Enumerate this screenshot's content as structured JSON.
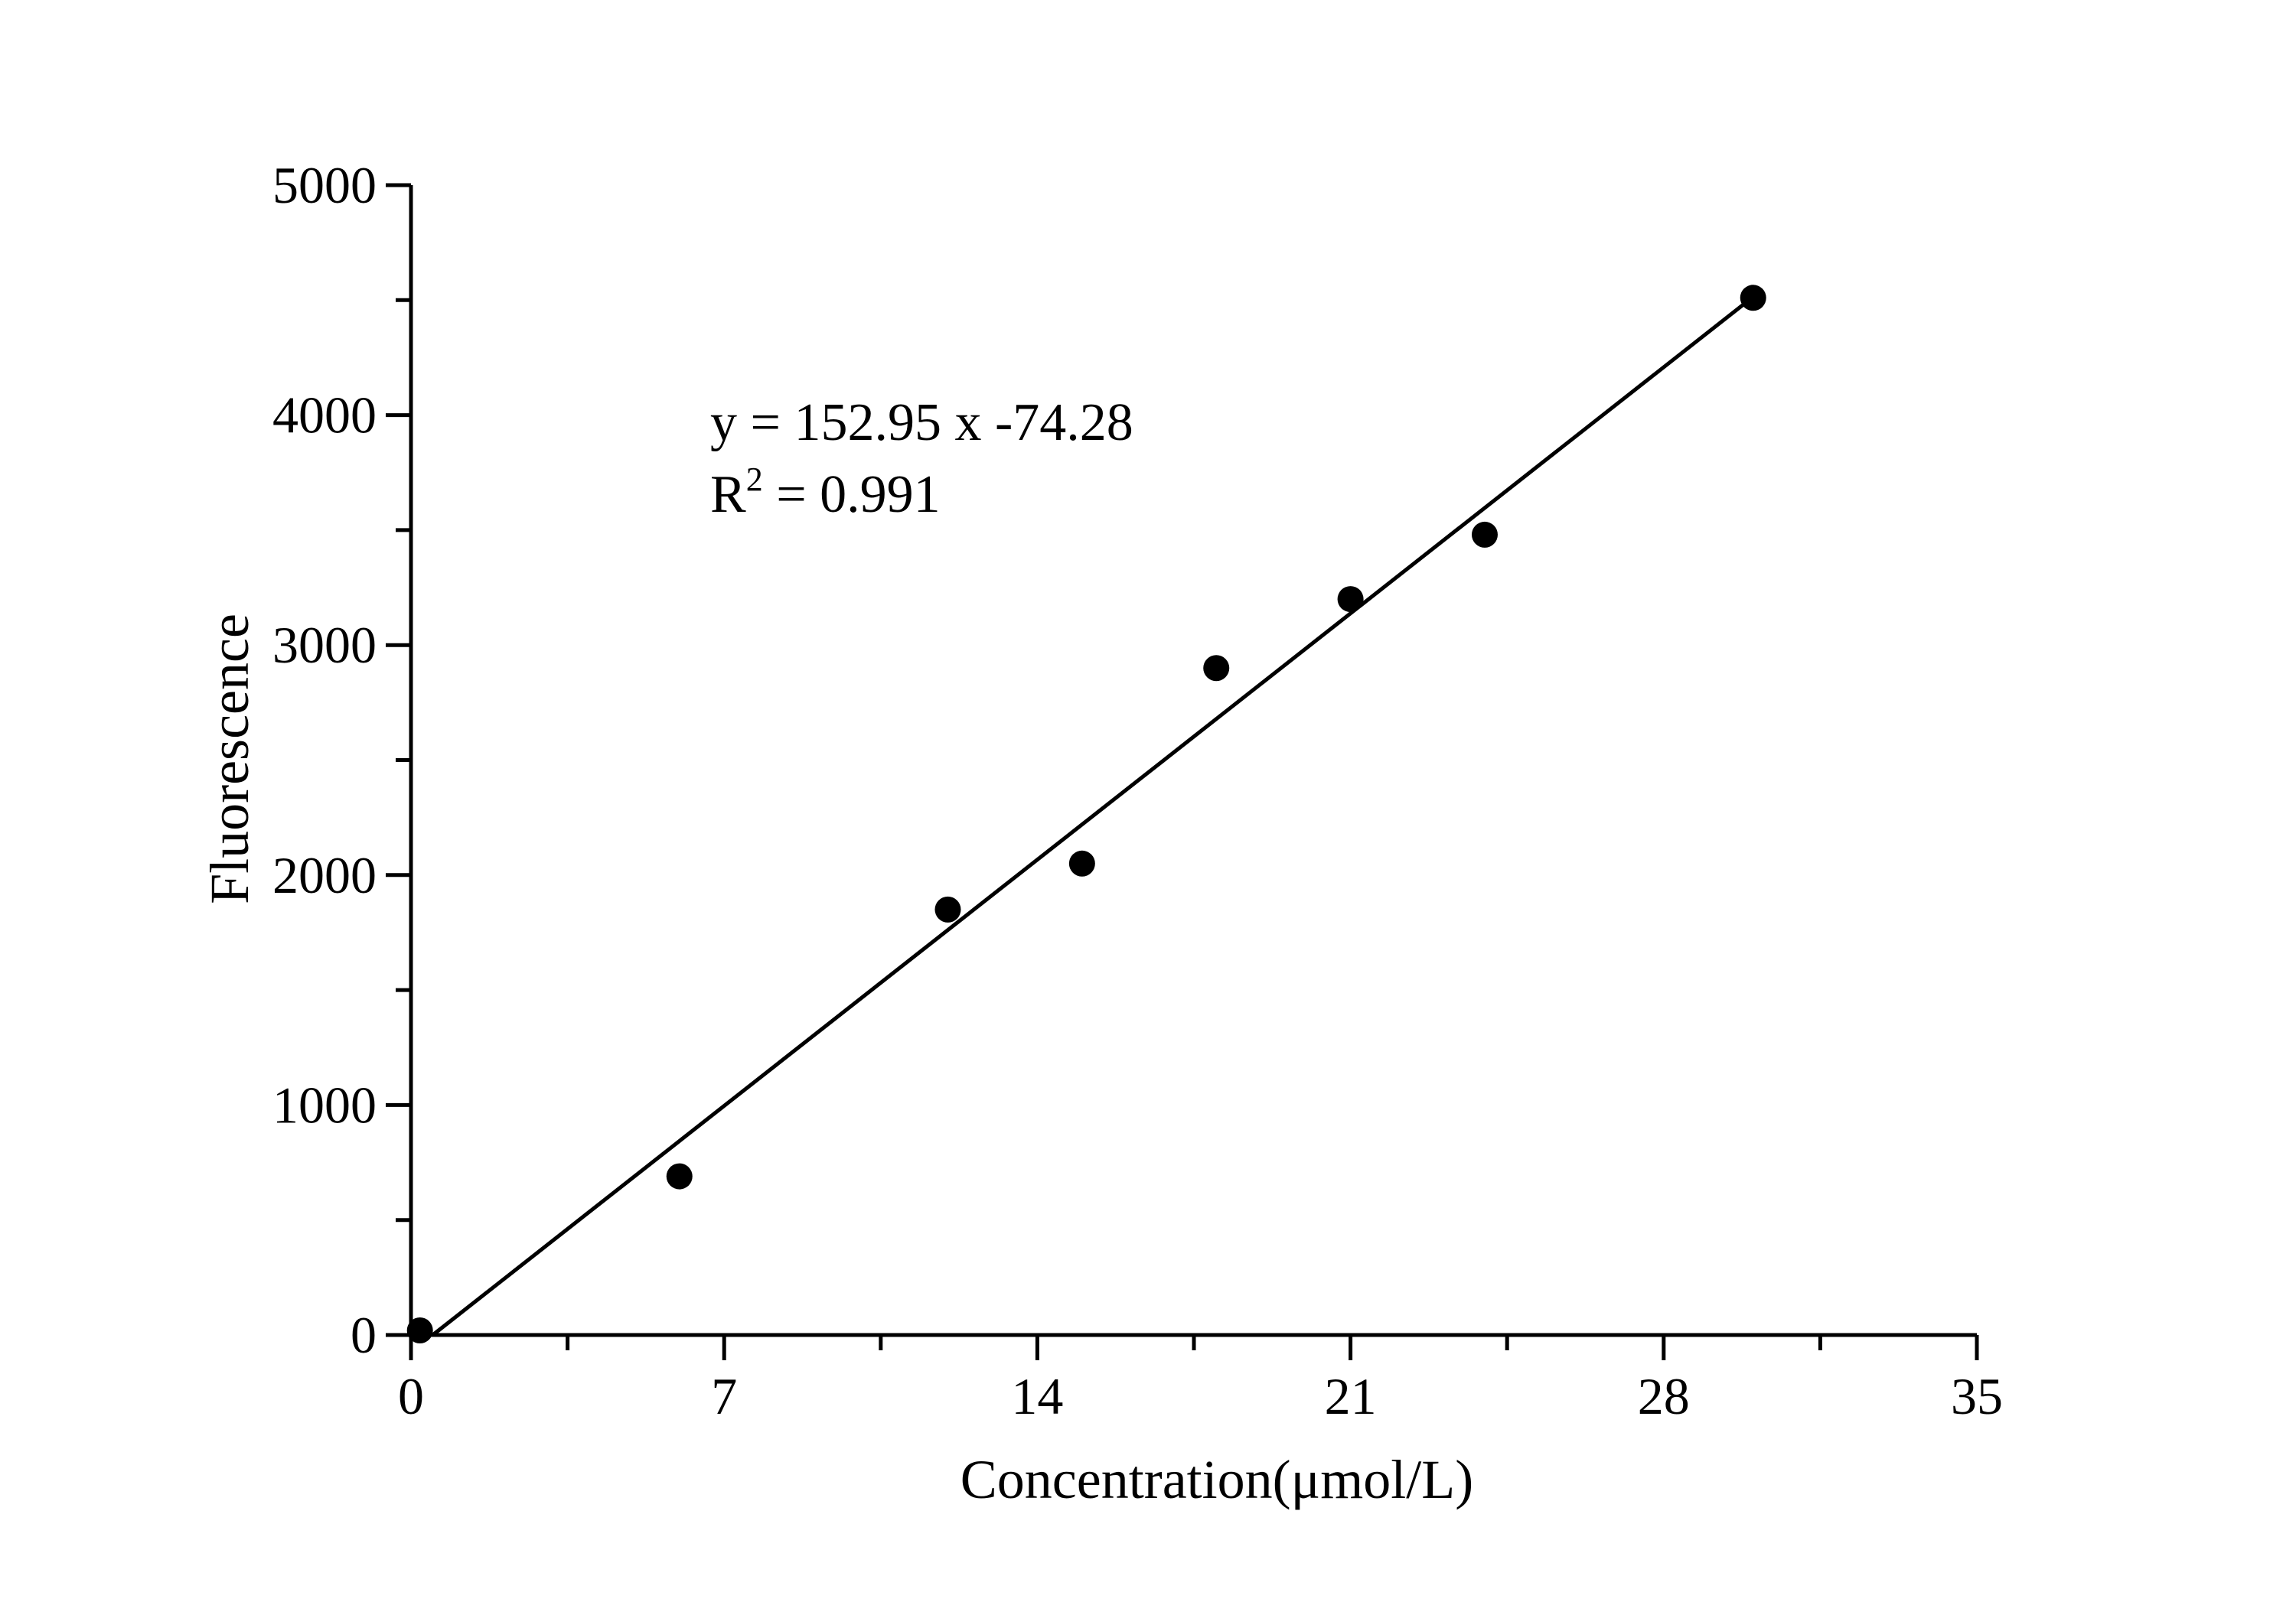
{
  "figure": {
    "background_color": "#ffffff",
    "axis_color": "#000000"
  },
  "chart_data": {
    "type": "scatter",
    "title": "",
    "xlabel": "Concentration(μmol/L)",
    "ylabel": "Fluorescence",
    "xlim": [
      0,
      35
    ],
    "ylim": [
      0,
      5000
    ],
    "x_major_ticks": [
      0,
      7,
      14,
      21,
      28,
      35
    ],
    "x_tick_labels": [
      "0",
      "7",
      "14",
      "21",
      "28",
      "35"
    ],
    "y_major_ticks": [
      0,
      1000,
      2000,
      3000,
      4000,
      5000
    ],
    "y_tick_labels": [
      "0",
      "1000",
      "2000",
      "3000",
      "4000",
      "5000"
    ],
    "x_minor_step": 3.5,
    "y_minor_step": 500,
    "grid": false,
    "legend": "none",
    "points": [
      [
        0.2,
        20
      ],
      [
        6,
        690
      ],
      [
        12,
        1850
      ],
      [
        15,
        2050
      ],
      [
        18,
        2900
      ],
      [
        21,
        3200
      ],
      [
        24,
        3480
      ],
      [
        30,
        4510
      ]
    ],
    "fit_line": {
      "slope": 152.95,
      "intercept": -74.28,
      "x_start": 0.4857,
      "x_end": 30
    },
    "marker_color": "#000000",
    "line_color": "#000000",
    "annotation": {
      "line1": "y = 152.95 x -74.28",
      "r2_base": "R",
      "r2_sup": "2",
      "r2_rest": " = 0.991"
    }
  }
}
